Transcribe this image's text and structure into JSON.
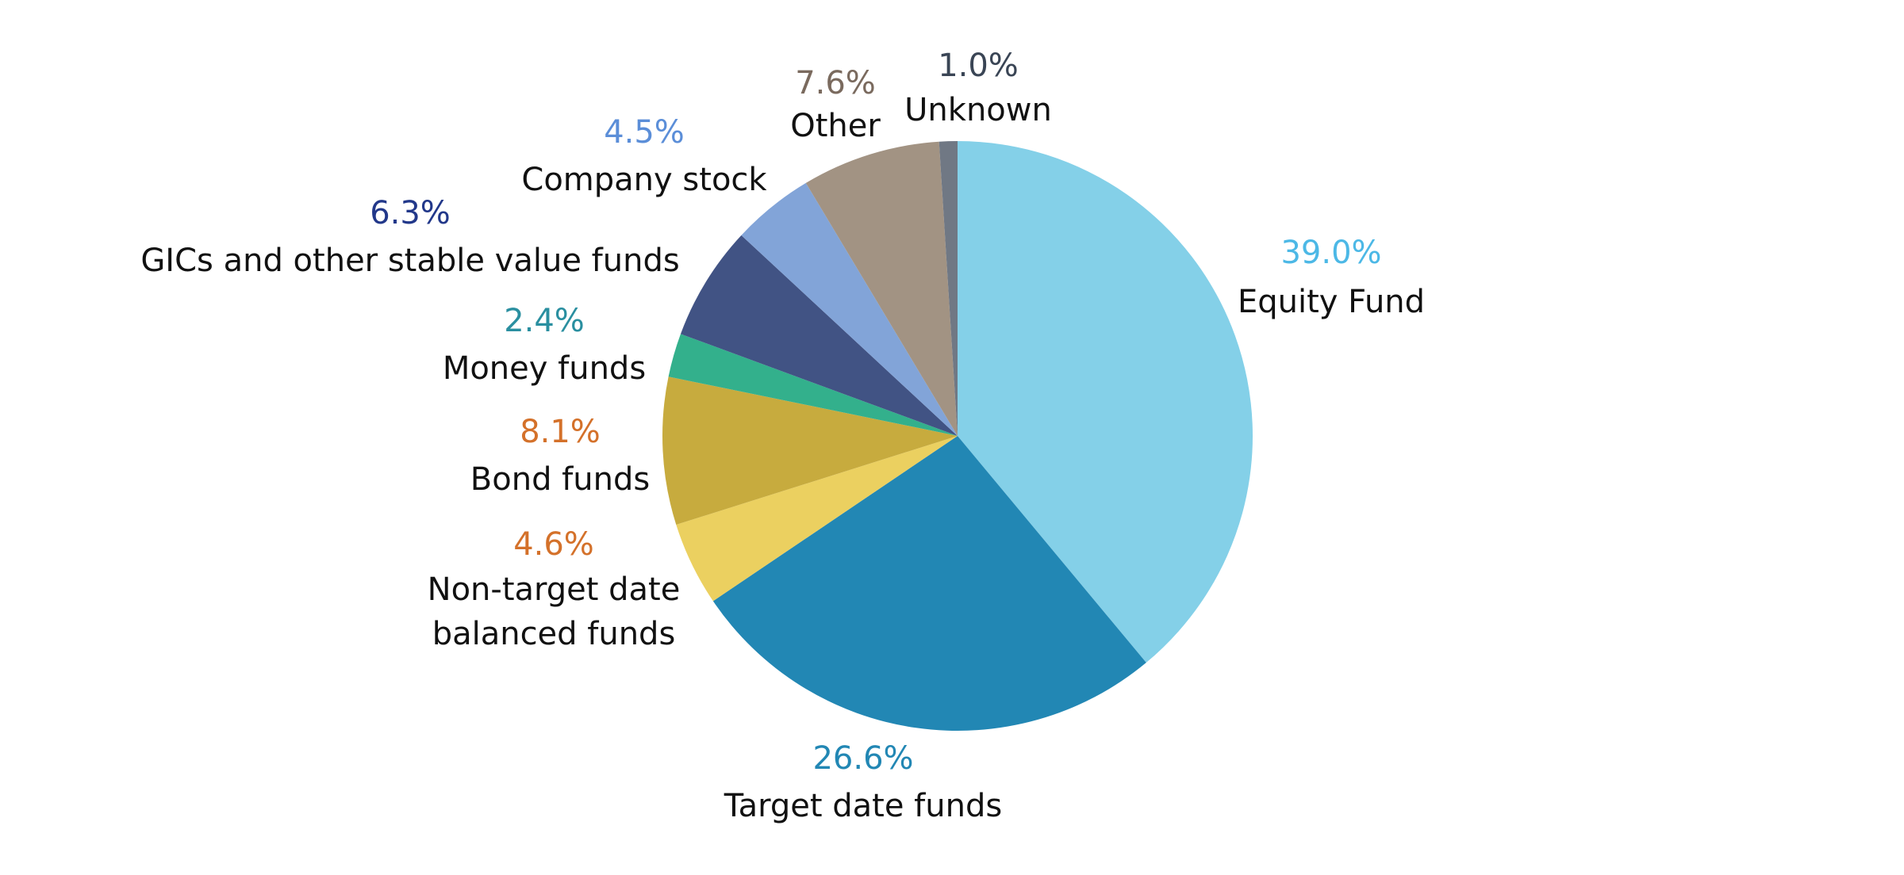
{
  "chart_data": {
    "type": "pie",
    "title": "",
    "start_angle_deg": 0,
    "direction": "clockwise",
    "slices": [
      {
        "name": "Equity Fund",
        "value": 39.0,
        "value_label": "39.0%",
        "color": "#84d0e8",
        "label_color": "#4cb8e6"
      },
      {
        "name": "Target date funds",
        "value": 26.6,
        "value_label": "26.6%",
        "color": "#2287b4",
        "label_color": "#2287b4"
      },
      {
        "name": "Non-target date balanced funds",
        "label_lines": [
          "Non-target date",
          "balanced funds"
        ],
        "value": 4.6,
        "value_label": "4.6%",
        "color": "#ebd060",
        "label_color": "#d4712a"
      },
      {
        "name": "Bond funds",
        "value": 8.1,
        "value_label": "8.1%",
        "color": "#c7ab3e",
        "label_color": "#d4712a"
      },
      {
        "name": "Money funds",
        "value": 2.4,
        "value_label": "2.4%",
        "color": "#33b08c",
        "label_color": "#2a8fa0"
      },
      {
        "name": "GICs and other stable value funds",
        "value": 6.3,
        "value_label": "6.3%",
        "color": "#415384",
        "label_color": "#22388a"
      },
      {
        "name": "Company stock",
        "value": 4.5,
        "value_label": "4.5%",
        "color": "#82a4d8",
        "label_color": "#5b8ed8"
      },
      {
        "name": "Other",
        "value": 7.6,
        "value_label": "7.6%",
        "color": "#a29383",
        "label_color": "#7a6a5e"
      },
      {
        "name": "Unknown",
        "value": 1.0,
        "value_label": "1.0%",
        "color": "#707884",
        "label_color": "#3a4555"
      }
    ]
  }
}
